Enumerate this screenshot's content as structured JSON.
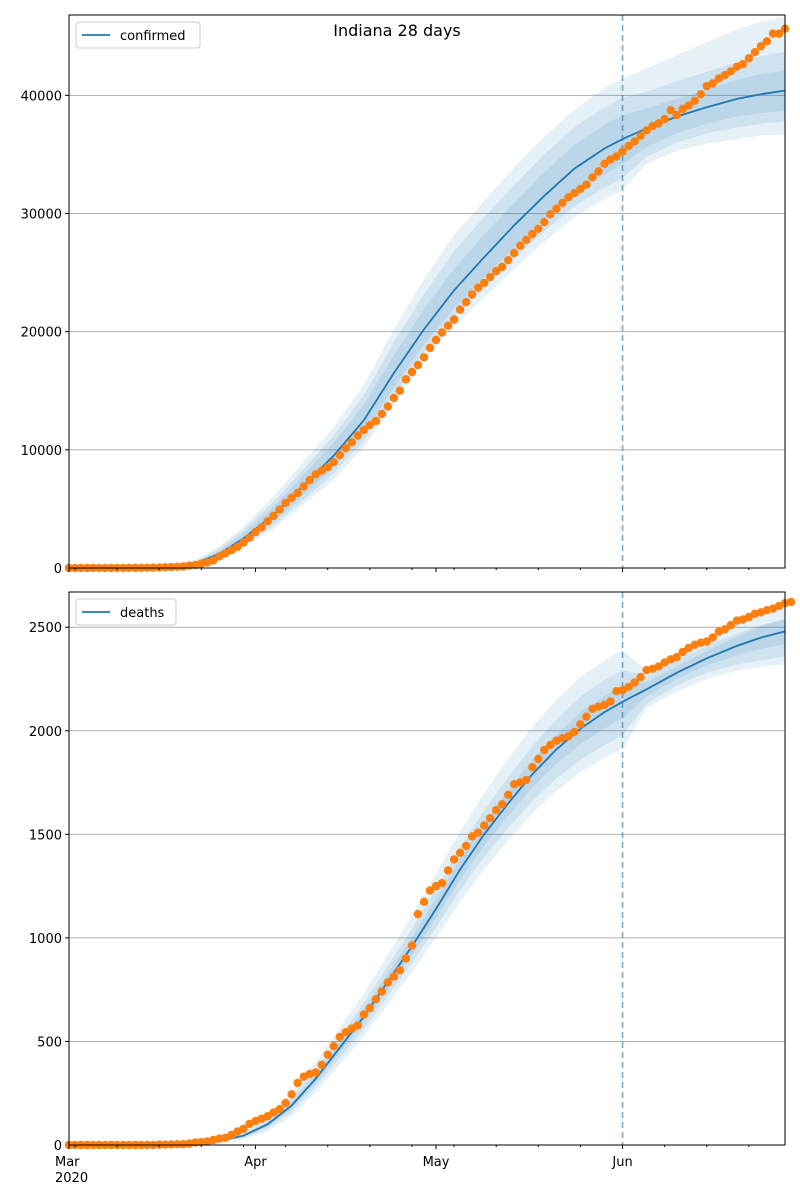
{
  "figure": {
    "title": "Indiana 28 days"
  },
  "colors": {
    "model": "#1f77b4",
    "observed": "#ff7f0e",
    "band": "#1f77b4",
    "grid": "#b0b0b0",
    "split": "#1f77b4"
  },
  "x_axis": {
    "ticks": [
      {
        "label": "Mar",
        "date": "2020-03-01"
      },
      {
        "label": "Apr",
        "date": "2020-04-01"
      },
      {
        "label": "May",
        "date": "2020-05-01"
      },
      {
        "label": "Jun",
        "date": "2020-06-01"
      }
    ],
    "year_label": "2020",
    "range": [
      "2020-03-01",
      "2020-06-28"
    ]
  },
  "chart_data": [
    {
      "type": "line",
      "legend": [
        "confirmed"
      ],
      "legend_placement": "top-left",
      "ylim": [
        0,
        46800
      ],
      "yticks": [
        0,
        10000,
        20000,
        30000,
        40000
      ],
      "grid": "horizontal",
      "split_date": "2020-06-01",
      "model": {
        "name": "confirmed",
        "x": [
          "2020-03-01",
          "2020-03-11",
          "2020-03-18",
          "2020-03-22",
          "2020-03-26",
          "2020-03-30",
          "2020-04-04",
          "2020-04-09",
          "2020-04-14",
          "2020-04-19",
          "2020-04-24",
          "2020-04-29",
          "2020-05-04",
          "2020-05-09",
          "2020-05-14",
          "2020-05-19",
          "2020-05-24",
          "2020-05-29",
          "2020-06-01",
          "2020-06-05",
          "2020-06-10",
          "2020-06-15",
          "2020-06-20",
          "2020-06-24",
          "2020-06-28"
        ],
        "y": [
          0,
          0,
          50,
          400,
          1200,
          2500,
          4500,
          7000,
          9500,
          12500,
          16500,
          20200,
          23500,
          26300,
          29000,
          31500,
          33800,
          35500,
          36300,
          37200,
          38200,
          39000,
          39700,
          40100,
          40400
        ],
        "bands": [
          {
            "lower": [
              0,
              0,
              30,
              300,
              900,
              2000,
              3600,
              5800,
              8000,
              10800,
              14600,
              18200,
              21200,
              23700,
              26200,
              28500,
              30600,
              32200,
              33000,
              34800,
              36000,
              36800,
              37300,
              37600,
              37800
            ],
            "upper": [
              0,
              0,
              80,
              550,
              1650,
              3200,
              5600,
              8400,
              11200,
              14600,
              19100,
              23200,
              26800,
              29700,
              32400,
              35000,
              37300,
              39000,
              39800,
              40300,
              41200,
              42000,
              42800,
              43300,
              43700
            ]
          },
          {
            "lower": [
              0,
              0,
              20,
              250,
              800,
              1800,
              3300,
              5400,
              7500,
              10200,
              13800,
              17500,
              20400,
              22900,
              25300,
              27600,
              29700,
              31200,
              32000,
              34200,
              35300,
              35900,
              36300,
              36600,
              36700
            ],
            "upper": [
              0,
              0,
              100,
              650,
              1850,
              3500,
              6100,
              9000,
              11900,
              15500,
              20200,
              24500,
              28200,
              31100,
              33900,
              36500,
              38800,
              40600,
              41400,
              42300,
              43400,
              44500,
              45600,
              46200,
              46700
            ]
          },
          {
            "lower": [
              0,
              0,
              40,
              340,
              1000,
              2200,
              3900,
              6200,
              8500,
              11400,
              15300,
              18900,
              22000,
              24600,
              27100,
              29500,
              31700,
              33300,
              34200,
              35600,
              36800,
              37600,
              38200,
              38500,
              38700
            ],
            "upper": [
              0,
              0,
              65,
              480,
              1450,
              2900,
              5200,
              7900,
              10600,
              13800,
              18000,
              21900,
              25300,
              28200,
              30900,
              33500,
              35800,
              37500,
              38300,
              38900,
              39700,
              40500,
              41300,
              41800,
              42100
            ]
          }
        ]
      },
      "observed": {
        "name": "observed confirmed",
        "start": "2020-03-01",
        "values": [
          0,
          0,
          0,
          0,
          0,
          2,
          4,
          6,
          10,
          12,
          15,
          17,
          20,
          25,
          30,
          40,
          56,
          80,
          98,
          126,
          205,
          259,
          365,
          477,
          645,
          981,
          1232,
          1514,
          1786,
          2159,
          2565,
          3039,
          3437,
          3953,
          4411,
          4944,
          5507,
          5943,
          6351,
          6907,
          7435,
          7928,
          8236,
          8527,
          8955,
          9542,
          10154,
          10641,
          11210,
          11688,
          12097,
          12438,
          13039,
          13680,
          14399,
          15012,
          15961,
          16588,
          17182,
          17835,
          18630,
          19295,
          19933,
          20507,
          21033,
          21870,
          22503,
          23146,
          23732,
          24126,
          24627,
          25127,
          25473,
          26053,
          26655,
          27280,
          27778,
          28255,
          28705,
          29274,
          29936,
          30409,
          30901,
          31376,
          31715,
          32078,
          32437,
          33068,
          33558,
          34211,
          34574,
          34830,
          35237,
          35712,
          36096,
          36578,
          37031,
          37397,
          37623,
          37994,
          38748,
          38337,
          38849,
          39146,
          39543,
          40096,
          40786,
          41013,
          41438,
          41708,
          42032,
          42423,
          42633,
          43140,
          43655,
          44160,
          44575,
          45228,
          45228,
          45641
        ]
      }
    },
    {
      "type": "line",
      "legend": [
        "deaths"
      ],
      "legend_placement": "top-left",
      "ylim": [
        0,
        2670
      ],
      "yticks": [
        0,
        500,
        1000,
        1500,
        2000,
        2500
      ],
      "grid": "horizontal",
      "split_date": "2020-06-01",
      "model": {
        "name": "deaths",
        "x": [
          "2020-03-01",
          "2020-03-15",
          "2020-03-22",
          "2020-03-26",
          "2020-03-30",
          "2020-04-03",
          "2020-04-07",
          "2020-04-11",
          "2020-04-15",
          "2020-04-19",
          "2020-04-23",
          "2020-04-27",
          "2020-05-01",
          "2020-05-05",
          "2020-05-09",
          "2020-05-13",
          "2020-05-17",
          "2020-05-21",
          "2020-05-25",
          "2020-05-29",
          "2020-06-01",
          "2020-06-05",
          "2020-06-10",
          "2020-06-15",
          "2020-06-20",
          "2020-06-24",
          "2020-06-28"
        ],
        "y": [
          0,
          1,
          5,
          20,
          45,
          100,
          190,
          320,
          470,
          620,
          790,
          960,
          1140,
          1330,
          1500,
          1650,
          1790,
          1910,
          2010,
          2090,
          2140,
          2200,
          2280,
          2350,
          2410,
          2450,
          2480
        ],
        "bands": [
          {
            "lower": [
              0,
              0,
              3,
              14,
              35,
              80,
              160,
              280,
              420,
              560,
              720,
              880,
              1050,
              1230,
              1390,
              1530,
              1660,
              1770,
              1860,
              1930,
              1980,
              2130,
              2220,
              2280,
              2320,
              2340,
              2360
            ],
            "upper": [
              0,
              2,
              8,
              28,
              57,
              125,
              225,
              365,
              525,
              685,
              865,
              1045,
              1235,
              1435,
              1615,
              1775,
              1925,
              2055,
              2165,
              2245,
              2295,
              2260,
              2340,
              2410,
              2470,
              2510,
              2540
            ]
          },
          {
            "lower": [
              0,
              0,
              2,
              10,
              28,
              65,
              140,
              255,
              390,
              525,
              680,
              835,
              1000,
              1175,
              1330,
              1470,
              1600,
              1710,
              1800,
              1870,
              1910,
              2110,
              2190,
              2250,
              2290,
              2310,
              2320
            ],
            "upper": [
              0,
              3,
              10,
              34,
              68,
              145,
              255,
              400,
              565,
              730,
              920,
              1110,
              1310,
              1515,
              1700,
              1865,
              2020,
              2150,
              2260,
              2340,
              2390,
              2290,
              2380,
              2450,
              2520,
              2560,
              2600
            ]
          },
          {
            "lower": [
              0,
              0,
              4,
              17,
              40,
              90,
              175,
              300,
              445,
              590,
              755,
              920,
              1095,
              1280,
              1445,
              1590,
              1725,
              1840,
              1935,
              2010,
              2060,
              2165,
              2250,
              2315,
              2365,
              2395,
              2420
            ],
            "upper": [
              0,
              2,
              7,
              24,
              52,
              112,
              208,
              342,
              498,
              652,
              828,
              1002,
              1188,
              1383,
              1558,
              1712,
              1858,
              1982,
              2088,
              2168,
              2218,
              2235,
              2310,
              2385,
              2455,
              2505,
              2540
            ]
          }
        ]
      },
      "observed": {
        "name": "observed deaths",
        "start": "2020-03-01",
        "values": [
          0,
          0,
          0,
          0,
          0,
          0,
          0,
          0,
          0,
          0,
          0,
          0,
          0,
          0,
          0,
          2,
          2,
          3,
          4,
          4,
          7,
          12,
          14,
          17,
          24,
          31,
          35,
          49,
          65,
          78,
          102,
          116,
          127,
          139,
          157,
          173,
          203,
          245,
          300,
          330,
          343,
          350,
          387,
          436,
          477,
          522,
          545,
          562,
          577,
          630,
          661,
          704,
          741,
          785,
          813,
          844,
          901,
          963,
          1115,
          1174,
          1229,
          1250,
          1264,
          1326,
          1379,
          1411,
          1444,
          1490,
          1508,
          1543,
          1578,
          1617,
          1645,
          1691,
          1742,
          1750,
          1763,
          1824,
          1864,
          1907,
          1932,
          1952,
          1964,
          1974,
          1994,
          2031,
          2068,
          2106,
          2116,
          2125,
          2142,
          2191,
          2196,
          2212,
          2233,
          2259,
          2293,
          2299,
          2311,
          2330,
          2345,
          2355,
          2381,
          2400,
          2415,
          2425,
          2431,
          2451,
          2479,
          2490,
          2510,
          2532,
          2537,
          2549,
          2565,
          2572,
          2582,
          2590,
          2603,
          2616,
          2622
        ]
      }
    }
  ]
}
